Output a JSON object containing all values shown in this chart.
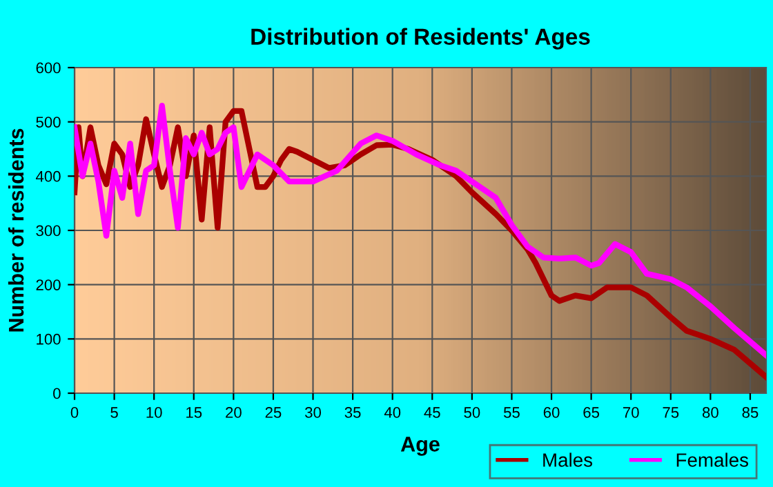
{
  "chart_data": {
    "type": "line",
    "title": "Distribution of Residents' Ages",
    "xlabel": "Age",
    "ylabel": "Number of residents",
    "xlim": [
      0,
      87
    ],
    "xticks": [
      0,
      5,
      10,
      15,
      20,
      25,
      30,
      35,
      40,
      45,
      50,
      55,
      60,
      65,
      70,
      75,
      80,
      85
    ],
    "ylim": [
      0,
      600
    ],
    "yticks": [
      0,
      100,
      200,
      300,
      400,
      500,
      600
    ],
    "grid": true,
    "legend": "bottom right",
    "marker": "none",
    "line_style": "solid",
    "series": [
      {
        "name": "Males",
        "color": "#aa0000",
        "x": [
          0,
          0.5,
          1,
          2,
          3,
          4,
          5,
          6,
          7,
          8,
          9,
          10,
          11,
          12,
          13,
          14,
          15,
          16,
          17,
          18,
          19,
          20,
          21,
          22,
          23,
          24,
          25,
          26,
          27,
          28,
          30,
          32,
          34,
          36,
          38,
          40,
          42,
          45,
          48,
          50,
          53,
          55,
          57,
          58,
          60,
          61,
          63,
          65,
          67,
          70,
          72,
          75,
          77,
          80,
          83,
          85,
          87
        ],
        "values": [
          370,
          490,
          400,
          490,
          420,
          385,
          460,
          440,
          380,
          420,
          505,
          440,
          380,
          420,
          490,
          400,
          475,
          320,
          490,
          305,
          500,
          520,
          520,
          450,
          380,
          380,
          400,
          430,
          450,
          445,
          430,
          415,
          420,
          440,
          457,
          458,
          450,
          430,
          400,
          370,
          330,
          300,
          265,
          240,
          180,
          170,
          180,
          175,
          195,
          195,
          180,
          140,
          115,
          100,
          80,
          55,
          30
        ]
      },
      {
        "name": "Females",
        "color": "#ff00ff",
        "x": [
          0,
          1,
          2,
          3,
          4,
          5,
          6,
          7,
          8,
          9,
          10,
          11,
          12,
          13,
          14,
          15,
          16,
          17,
          18,
          19,
          20,
          21,
          22,
          23,
          25,
          27,
          30,
          33,
          36,
          38,
          40,
          43,
          46,
          48,
          50,
          53,
          55,
          57,
          59,
          61,
          63,
          65,
          66,
          68,
          70,
          72,
          75,
          77,
          80,
          83,
          85,
          87
        ],
        "values": [
          490,
          400,
          460,
          390,
          290,
          410,
          360,
          460,
          330,
          410,
          420,
          530,
          410,
          305,
          470,
          440,
          480,
          440,
          450,
          480,
          490,
          380,
          410,
          440,
          420,
          390,
          390,
          410,
          460,
          475,
          465,
          440,
          420,
          410,
          390,
          360,
          310,
          270,
          250,
          248,
          250,
          235,
          240,
          275,
          260,
          220,
          210,
          195,
          160,
          120,
          95,
          70
        ]
      }
    ]
  }
}
